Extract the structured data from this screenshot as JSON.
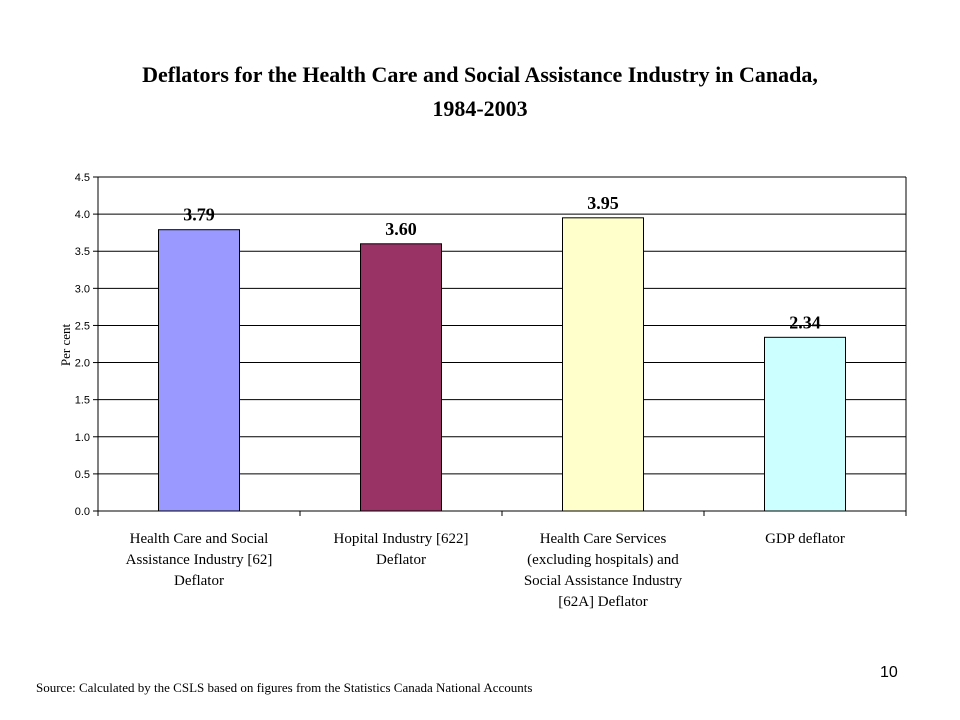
{
  "chart_data": {
    "type": "bar",
    "title_line1": "Deflators for the Health Care and Social Assistance Industry in Canada,",
    "title_line2": "1984-2003",
    "ylabel": "Per cent",
    "ylim": [
      0,
      4.5
    ],
    "yticks": [
      "0.0",
      "0.5",
      "1.0",
      "1.5",
      "2.0",
      "2.5",
      "3.0",
      "3.5",
      "4.0",
      "4.5"
    ],
    "grid": true,
    "categories": [
      [
        "Health Care and Social",
        "Assistance Industry [62]",
        "Deflator"
      ],
      [
        "Hopital Industry [622]",
        "Deflator"
      ],
      [
        "Health Care Services",
        "(excluding hospitals) and",
        "Social Assistance Industry",
        "[62A] Deflator"
      ],
      [
        "GDP deflator"
      ]
    ],
    "values": [
      3.79,
      3.6,
      3.95,
      2.34
    ],
    "data_labels": [
      "3.79",
      "3.60",
      "3.95",
      "2.34"
    ],
    "colors": [
      "#9999ff",
      "#993366",
      "#ffffcc",
      "#ccffff"
    ]
  },
  "footer": {
    "source": "Source: Calculated by the CSLS based on figures from the Statistics Canada National Accounts",
    "page_number": "10"
  }
}
